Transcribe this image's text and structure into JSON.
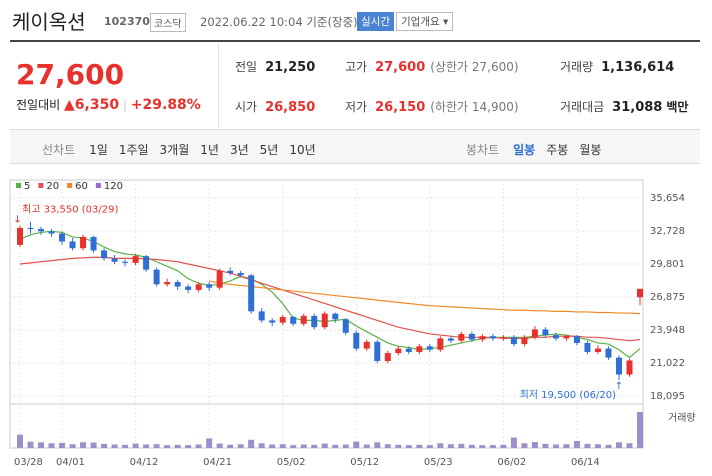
{
  "header": {
    "title": "케이옥션",
    "code": "102370",
    "market": "코스닥",
    "timestamp": "2022.06.22 10:04 기준(장중)",
    "realtime_button": "실시간",
    "company_button": "기업개요"
  },
  "price": {
    "current": "27,600",
    "change_label": "전일대비",
    "change": "6,350",
    "change_pct": "+29.88%"
  },
  "quote": [
    [
      {
        "label": "전일",
        "value": "21,250"
      },
      {
        "label": "고가",
        "value": "27,600",
        "note": "(상한가 27,600)"
      },
      {
        "label": "거래량",
        "value": "1,136,614"
      }
    ],
    [
      {
        "label": "시가",
        "value": "26,850"
      },
      {
        "label": "저가",
        "value": "26,150",
        "note": "(하한가 14,900)"
      },
      {
        "label": "거래대금",
        "value": "31,088",
        "unit": "백만"
      }
    ]
  ],
  "tabs": {
    "line": {
      "label": "선차트",
      "items": [
        "1일",
        "1주일",
        "3개월",
        "1년",
        "3년",
        "5년",
        "10년"
      ]
    },
    "candle": {
      "label": "봉차트",
      "items": [
        "일봉",
        "주봉",
        "월봉"
      ],
      "active": 0
    }
  },
  "chart_data": {
    "type": "candlestick",
    "categories": [
      "03/28",
      null,
      null,
      null,
      "04/01",
      null,
      null,
      null,
      null,
      null,
      null,
      "04/12",
      null,
      null,
      null,
      null,
      null,
      null,
      "04/21",
      null,
      null,
      null,
      null,
      null,
      null,
      "05/02",
      null,
      null,
      null,
      null,
      null,
      null,
      "05/12",
      null,
      null,
      null,
      null,
      null,
      null,
      "05/23",
      null,
      null,
      null,
      null,
      null,
      null,
      "06/02",
      null,
      null,
      null,
      null,
      null,
      null,
      "06/14",
      null,
      null,
      null,
      null,
      null,
      null
    ],
    "open": [
      31500,
      33000,
      32900,
      32700,
      32500,
      31800,
      31200,
      32200,
      31000,
      30300,
      30000,
      29900,
      30500,
      29300,
      28000,
      28200,
      27800,
      27500,
      28000,
      27700,
      29200,
      29000,
      28800,
      25600,
      24800,
      24600,
      25100,
      24500,
      25200,
      24200,
      25400,
      24900,
      23700,
      22300,
      22900,
      21200,
      21900,
      22300,
      22000,
      22500,
      22200,
      23200,
      23000,
      23600,
      23100,
      23400,
      23200,
      23300,
      22700,
      23300,
      24000,
      23500,
      23200,
      23400,
      22800,
      22000,
      22300,
      21500,
      20000,
      26850
    ],
    "high": [
      33200,
      33550,
      33100,
      32900,
      32700,
      32100,
      32400,
      32300,
      31200,
      30600,
      30200,
      30700,
      30600,
      29500,
      28500,
      28400,
      28000,
      28200,
      28200,
      29400,
      29500,
      29200,
      28900,
      25900,
      25000,
      25300,
      25200,
      25400,
      25400,
      25600,
      25500,
      25000,
      23900,
      23100,
      23100,
      22100,
      22500,
      22500,
      22700,
      22700,
      23400,
      23400,
      23800,
      23800,
      23600,
      23600,
      23500,
      23500,
      23500,
      24300,
      24200,
      23700,
      23500,
      23500,
      23000,
      22600,
      22500,
      21700,
      21400,
      27600
    ],
    "low": [
      31300,
      32500,
      32400,
      32200,
      31500,
      31000,
      31000,
      30800,
      30100,
      29800,
      29600,
      29700,
      29100,
      27800,
      27800,
      27500,
      27200,
      27300,
      27400,
      27500,
      28800,
      28600,
      25400,
      24600,
      24300,
      24400,
      24300,
      24300,
      24000,
      24000,
      24600,
      23500,
      22100,
      22100,
      21000,
      21000,
      21700,
      21800,
      21800,
      22000,
      22000,
      22800,
      22800,
      22900,
      22900,
      23000,
      23000,
      22500,
      22500,
      23100,
      23300,
      23000,
      23000,
      22600,
      21800,
      21800,
      21300,
      19500,
      19800,
      26150
    ],
    "close": [
      33000,
      32900,
      32700,
      32500,
      31800,
      31200,
      32200,
      31000,
      30300,
      30000,
      29900,
      30500,
      29300,
      28000,
      28200,
      27800,
      27500,
      28000,
      27700,
      29200,
      29000,
      28800,
      25600,
      24800,
      24600,
      25100,
      24500,
      25200,
      24200,
      25400,
      24900,
      23700,
      22300,
      22900,
      21200,
      21900,
      22300,
      22000,
      22500,
      22200,
      23200,
      23000,
      23600,
      23100,
      23400,
      23200,
      23300,
      22700,
      23300,
      24000,
      23500,
      23200,
      23400,
      22800,
      22000,
      22300,
      21500,
      20000,
      21250,
      27600
    ],
    "up_color": "#e8312c",
    "down_color": "#2f6fd4",
    "ylim": [
      18095,
      35654
    ],
    "yticks": [
      {
        "value": 18095,
        "label": "18,095"
      },
      {
        "value": 21022,
        "label": "21,022"
      },
      {
        "value": 23948,
        "label": "23,948"
      },
      {
        "value": 26875,
        "label": "26,875"
      },
      {
        "value": 29801,
        "label": "29,801"
      },
      {
        "value": 32728,
        "label": "32,728"
      },
      {
        "value": 35654,
        "label": "35,654"
      }
    ],
    "grid": true,
    "moving_averages": [
      {
        "name": "5",
        "color": "#5ab046",
        "values": [
          32000,
          32400,
          32600,
          32700,
          32600,
          32200,
          32100,
          31800,
          31300,
          30900,
          30700,
          30600,
          30400,
          30000,
          29600,
          29200,
          28500,
          28100,
          27900,
          28000,
          28300,
          28700,
          28500,
          28000,
          27300,
          26300,
          25000,
          24800,
          24800,
          24700,
          24800,
          24900,
          24300,
          23800,
          23300,
          22800,
          22500,
          22400,
          22200,
          22300,
          22400,
          22600,
          22800,
          23000,
          23200,
          23300,
          23300,
          23300,
          23300,
          23400,
          23500,
          23600,
          23500,
          23300,
          23100,
          22800,
          22700,
          22200,
          21500,
          22300
        ]
      },
      {
        "name": "20",
        "color": "#e0524f",
        "values": [
          29800,
          29900,
          30000,
          30100,
          30200,
          30300,
          30350,
          30400,
          30400,
          30300,
          30300,
          30300,
          30250,
          30200,
          30100,
          30000,
          29800,
          29600,
          29400,
          29200,
          29000,
          28700,
          28400,
          28100,
          27800,
          27500,
          27200,
          26900,
          26600,
          26300,
          26000,
          25700,
          25400,
          25100,
          24800,
          24500,
          24200,
          24000,
          23800,
          23600,
          23500,
          23400,
          23300,
          23300,
          23300,
          23300,
          23200,
          23200,
          23200,
          23300,
          23300,
          23400,
          23400,
          23400,
          23300,
          23300,
          23200,
          23100,
          23000,
          23100
        ]
      },
      {
        "name": "60",
        "color": "#f08a24",
        "values": [
          null,
          null,
          null,
          null,
          null,
          null,
          null,
          null,
          null,
          null,
          null,
          null,
          null,
          null,
          null,
          null,
          null,
          null,
          28300,
          28100,
          28000,
          27900,
          27800,
          27700,
          27600,
          27500,
          27400,
          27300,
          27200,
          27100,
          27000,
          26900,
          26800,
          26700,
          26600,
          26500,
          26400,
          26300,
          26200,
          26100,
          26050,
          26000,
          25950,
          25900,
          25850,
          25800,
          25750,
          25700,
          25700,
          25650,
          25650,
          25600,
          25600,
          25550,
          25550,
          25500,
          25500,
          25450,
          25450,
          25400
        ]
      },
      {
        "name": "120",
        "color": "#9a6ad2",
        "values": [
          null,
          null,
          null,
          null,
          null,
          null,
          null,
          null,
          null,
          null,
          null,
          null,
          null,
          null,
          null,
          null,
          null,
          null,
          null,
          null,
          null,
          null,
          null,
          null,
          null,
          null,
          null,
          null,
          null,
          null,
          null,
          null,
          null,
          null,
          null,
          null,
          null,
          null,
          null,
          null,
          null,
          null,
          null,
          null,
          null,
          null,
          null,
          null,
          null,
          null,
          null,
          null,
          null,
          null,
          null,
          null,
          null,
          null,
          null,
          null
        ]
      }
    ],
    "volume": {
      "label": "거래량",
      "color": "#9d8fc9",
      "ylim": [
        0,
        1200000
      ],
      "values": [
        420000,
        200000,
        180000,
        150000,
        160000,
        120000,
        180000,
        170000,
        130000,
        110000,
        100000,
        140000,
        110000,
        120000,
        90000,
        100000,
        90000,
        110000,
        300000,
        140000,
        100000,
        120000,
        260000,
        150000,
        110000,
        120000,
        90000,
        110000,
        100000,
        140000,
        100000,
        110000,
        200000,
        110000,
        180000,
        120000,
        100000,
        90000,
        100000,
        90000,
        150000,
        120000,
        130000,
        100000,
        90000,
        90000,
        100000,
        330000,
        150000,
        190000,
        130000,
        110000,
        120000,
        220000,
        130000,
        120000,
        100000,
        180000,
        150000,
        1136614
      ]
    },
    "annotations": {
      "high": "최고 33,550 (03/29)",
      "low": "최저 19,500 (06/20)"
    }
  }
}
